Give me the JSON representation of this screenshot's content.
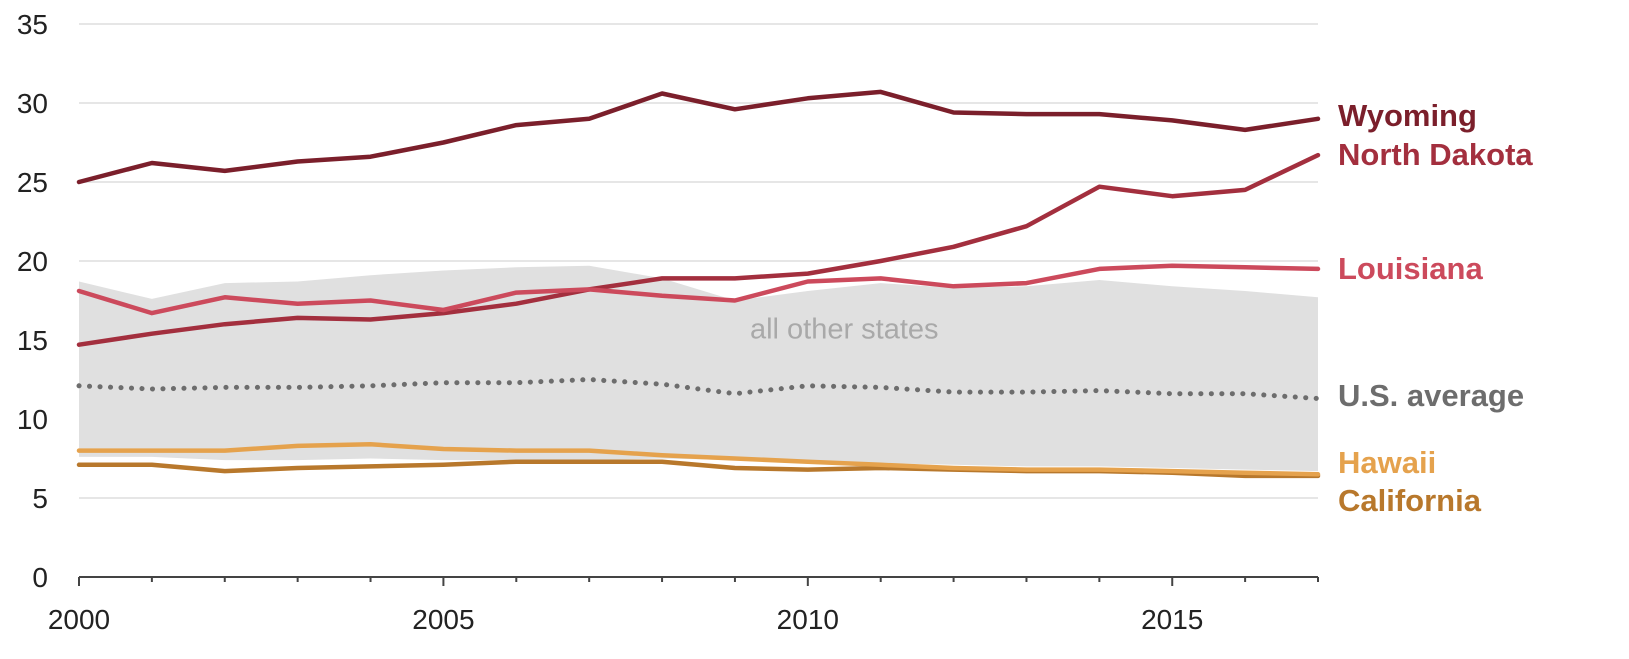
{
  "chart_data": {
    "type": "line",
    "title": "",
    "xlabel": "",
    "ylabel": "",
    "xlim": [
      2000,
      2017
    ],
    "ylim": [
      0,
      35
    ],
    "grid": true,
    "x": [
      2000,
      2001,
      2002,
      2003,
      2004,
      2005,
      2006,
      2007,
      2008,
      2009,
      2010,
      2011,
      2012,
      2013,
      2014,
      2015,
      2016,
      2017
    ],
    "x_ticks": [
      "2000",
      "2005",
      "2010",
      "2015"
    ],
    "y_ticks": [
      "0",
      "5",
      "10",
      "15",
      "20",
      "25",
      "30",
      "35"
    ],
    "band": {
      "label": "all other states",
      "color": "#e0e0e0",
      "upper": [
        18.7,
        17.6,
        18.6,
        18.7,
        19.1,
        19.4,
        19.6,
        19.7,
        18.9,
        17.5,
        18.1,
        18.6,
        18.3,
        18.4,
        18.8,
        18.4,
        18.1,
        17.7
      ],
      "lower": [
        7.6,
        7.6,
        7.4,
        7.4,
        7.5,
        7.4,
        7.4,
        7.4,
        7.5,
        7.4,
        7.3,
        7.2,
        7.1,
        7.0,
        7.0,
        6.9,
        6.8,
        6.7
      ]
    },
    "series": [
      {
        "name": "Wyoming",
        "color": "#7b1f2b",
        "values": [
          25.0,
          26.2,
          25.7,
          26.3,
          26.6,
          27.5,
          28.6,
          29.0,
          30.6,
          29.6,
          30.3,
          30.7,
          29.4,
          29.3,
          29.3,
          28.9,
          28.3,
          29.0
        ]
      },
      {
        "name": "North Dakota",
        "color": "#a32f3e",
        "values": [
          14.7,
          15.4,
          16.0,
          16.4,
          16.3,
          16.7,
          17.3,
          18.2,
          18.9,
          18.9,
          19.2,
          20.0,
          20.9,
          22.2,
          24.7,
          24.1,
          24.5,
          26.7
        ]
      },
      {
        "name": "Louisiana",
        "color": "#cc4a5c",
        "values": [
          18.1,
          16.7,
          17.7,
          17.3,
          17.5,
          16.9,
          18.0,
          18.2,
          17.8,
          17.5,
          18.7,
          18.9,
          18.4,
          18.6,
          19.5,
          19.7,
          19.6,
          19.5
        ]
      },
      {
        "name": "U.S. average",
        "color": "#6d6d6d",
        "dotted": true,
        "values": [
          12.1,
          11.9,
          12.0,
          12.0,
          12.1,
          12.3,
          12.3,
          12.5,
          12.2,
          11.6,
          12.1,
          12.0,
          11.7,
          11.7,
          11.8,
          11.6,
          11.6,
          11.3
        ]
      },
      {
        "name": "Hawaii",
        "color": "#e5a24d",
        "values": [
          8.0,
          8.0,
          8.0,
          8.3,
          8.4,
          8.1,
          8.0,
          8.0,
          7.7,
          7.5,
          7.3,
          7.1,
          6.9,
          6.8,
          6.8,
          6.7,
          6.6,
          6.5
        ]
      },
      {
        "name": "California",
        "color": "#b8782c",
        "values": [
          7.1,
          7.1,
          6.7,
          6.9,
          7.0,
          7.1,
          7.3,
          7.3,
          7.3,
          6.9,
          6.8,
          6.9,
          6.8,
          6.7,
          6.7,
          6.6,
          6.4,
          6.4
        ]
      }
    ]
  }
}
